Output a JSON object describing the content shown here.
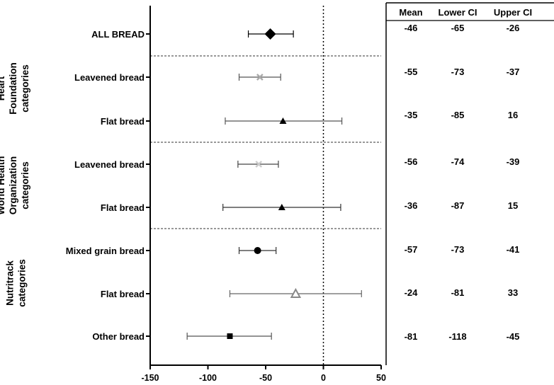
{
  "chart_data": {
    "type": "forest",
    "xlim": [
      -150,
      50
    ],
    "xticks": [
      -150,
      -100,
      -50,
      0,
      50
    ],
    "reference_line": 0,
    "table_headers": [
      "Mean",
      "Lower CI",
      "Upper CI"
    ],
    "groups": [
      {
        "label_lines": [
          "Heart",
          "Foundation",
          "categories"
        ],
        "rows": [
          1,
          2
        ]
      },
      {
        "label_lines": [
          "World Health",
          "Organization",
          "categories"
        ],
        "rows": [
          3,
          4
        ]
      },
      {
        "label_lines": [
          "Nutritrack",
          "categories"
        ],
        "rows": [
          5,
          6,
          7
        ]
      }
    ],
    "rows": [
      {
        "label": "ALL BREAD",
        "mean": -46,
        "lower": -65,
        "upper": -26,
        "marker": "diamond",
        "color": "#000000",
        "line_color": "#000000"
      },
      {
        "label": "Leavened bread",
        "mean": -55,
        "lower": -73,
        "upper": -37,
        "marker": "x",
        "color": "#aaaaaa",
        "line_color": "#555555"
      },
      {
        "label": "Flat bread",
        "mean": -35,
        "lower": -85,
        "upper": 16,
        "marker": "triangle",
        "color": "#000000",
        "line_color": "#555555"
      },
      {
        "label": "Leavened bread",
        "mean": -56,
        "lower": -74,
        "upper": -39,
        "marker": "x",
        "color": "#cccccc",
        "line_color": "#444444"
      },
      {
        "label": "Flat bread",
        "mean": -36,
        "lower": -87,
        "upper": 15,
        "marker": "triangle",
        "color": "#000000",
        "line_color": "#333333"
      },
      {
        "label": "Mixed grain bread",
        "mean": -57,
        "lower": -73,
        "upper": -41,
        "marker": "circle",
        "color": "#000000",
        "line_color": "#333333"
      },
      {
        "label": "Flat bread",
        "mean": -24,
        "lower": -81,
        "upper": 33,
        "marker": "triangle-open",
        "color": "#888888",
        "line_color": "#666666"
      },
      {
        "label": "Other bread",
        "mean": -81,
        "lower": -118,
        "upper": -45,
        "marker": "square",
        "color": "#000000",
        "line_color": "#555555"
      }
    ]
  }
}
